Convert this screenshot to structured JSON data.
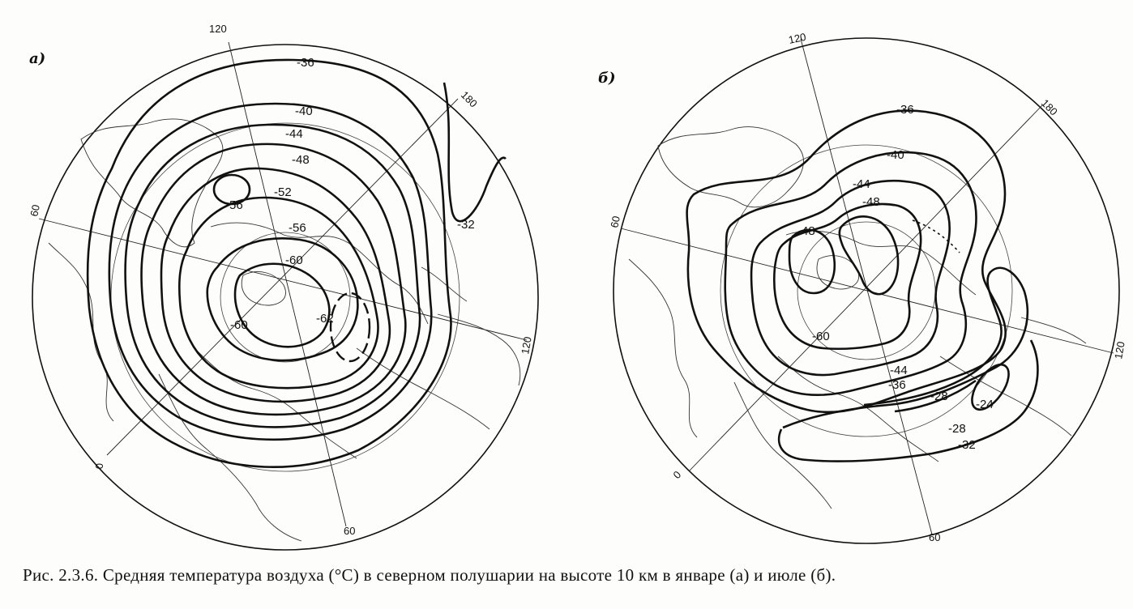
{
  "caption": "Рис. 2.3.6. Средняя температура воздуха (°C) в северном полушарии на высоте 10 км в январе (а) и июле (б).",
  "panel_a": {
    "letter": "а)",
    "meridians": [
      "120",
      "180",
      "60",
      "120",
      "60",
      "0"
    ],
    "isotherms": [
      "-36",
      "-40",
      "-44",
      "-48",
      "-52",
      "-56",
      "-56",
      "-60",
      "-62",
      "-60",
      "-32"
    ]
  },
  "panel_b": {
    "letter": "б)",
    "meridians": [
      "120",
      "180",
      "60",
      "120",
      "60",
      "0"
    ],
    "isotherms": [
      "-36",
      "-40",
      "-44",
      "-48",
      "-48",
      "-60",
      "-44",
      "-36",
      "-28",
      "-24",
      "-28",
      "-32"
    ]
  },
  "colors": {
    "ink": "#111111",
    "paper": "#fdfdfb"
  }
}
